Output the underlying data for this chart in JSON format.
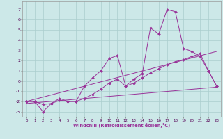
{
  "xlabel": "Windchill (Refroidissement éolien,°C)",
  "background_color": "#cce8e8",
  "grid_color": "#aacece",
  "line_color": "#993399",
  "xlim": [
    -0.5,
    23.5
  ],
  "ylim": [
    -3.5,
    7.8
  ],
  "yticks": [
    -3,
    -2,
    -1,
    0,
    1,
    2,
    3,
    4,
    5,
    6,
    7
  ],
  "xticks": [
    0,
    1,
    2,
    3,
    4,
    5,
    6,
    7,
    8,
    9,
    10,
    11,
    12,
    13,
    14,
    15,
    16,
    17,
    18,
    19,
    20,
    21,
    22,
    23
  ],
  "line1": {
    "x": [
      0,
      1,
      2,
      3,
      4,
      5,
      6,
      7,
      8,
      9,
      10,
      11,
      12,
      13,
      14,
      15,
      16,
      17,
      18,
      19,
      20,
      21,
      22,
      23
    ],
    "y": [
      -2.0,
      -2.0,
      -3.0,
      -2.2,
      -1.7,
      -2.0,
      -2.0,
      -0.5,
      0.3,
      1.0,
      2.2,
      2.5,
      -0.5,
      0.2,
      0.7,
      5.2,
      4.6,
      7.0,
      6.8,
      3.2,
      2.9,
      2.4,
      1.0,
      -0.5
    ]
  },
  "line2": {
    "x": [
      0,
      1,
      2,
      3,
      4,
      5,
      6,
      7,
      8,
      9,
      10,
      11,
      12,
      13,
      14,
      15,
      16,
      17,
      18,
      19,
      20,
      21,
      22,
      23
    ],
    "y": [
      -2.0,
      -2.0,
      -2.3,
      -2.2,
      -1.9,
      -2.0,
      -2.0,
      -1.7,
      -1.3,
      -0.8,
      -0.2,
      0.2,
      -0.5,
      -0.2,
      0.3,
      0.8,
      1.2,
      1.6,
      1.9,
      2.1,
      2.4,
      2.7,
      1.0,
      -0.5
    ]
  },
  "trend1": {
    "x": [
      0,
      23
    ],
    "y": [
      -2.0,
      2.9
    ]
  },
  "trend2": {
    "x": [
      0,
      23
    ],
    "y": [
      -2.2,
      -0.6
    ]
  }
}
